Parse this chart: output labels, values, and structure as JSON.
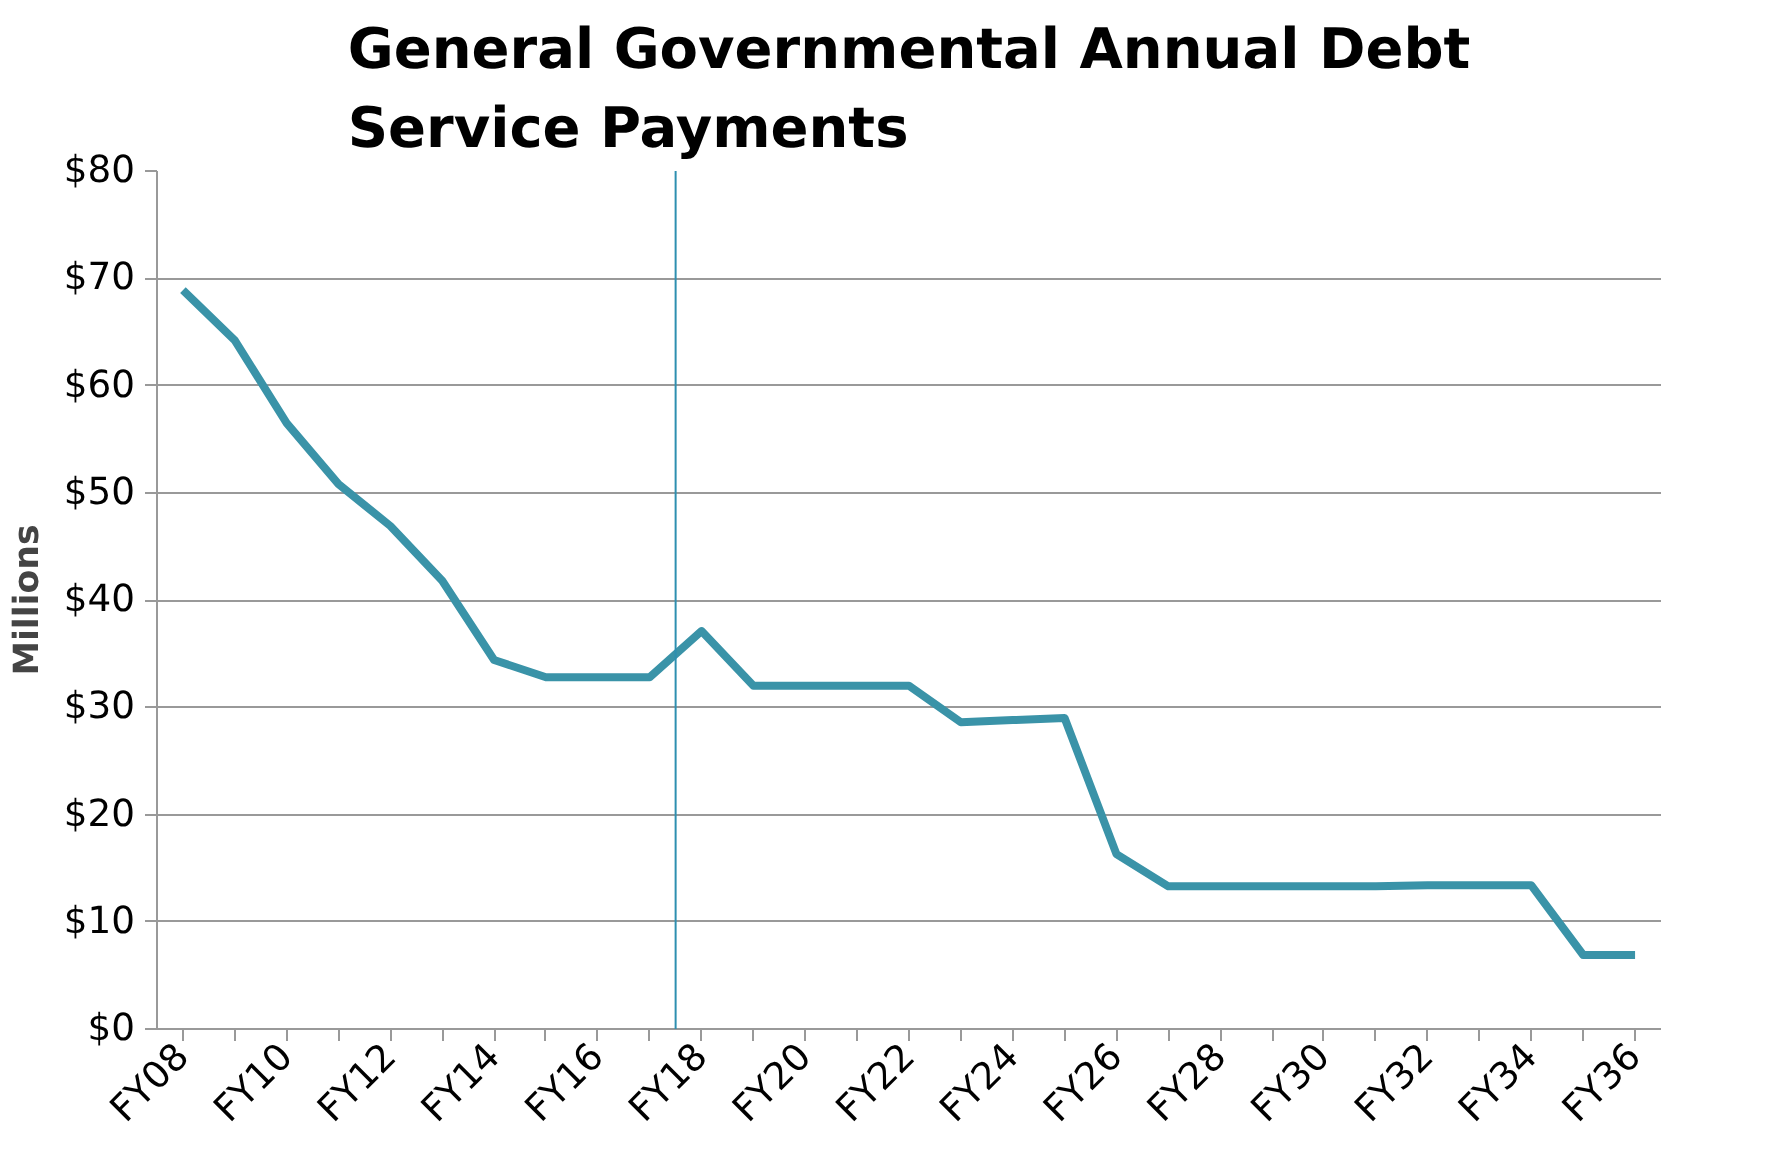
{
  "chart_data": {
    "type": "line",
    "title": "General Governmental Annual Debt\nService Payments",
    "ylabel": "Millions",
    "categories": [
      "FY08",
      null,
      "FY10",
      null,
      "FY12",
      null,
      "FY14",
      null,
      "FY16",
      null,
      "FY18",
      null,
      "FY20",
      null,
      "FY22",
      null,
      "FY24",
      null,
      "FY26",
      null,
      "FY28",
      null,
      "FY30",
      null,
      "FY32",
      null,
      "FY34",
      null,
      "FY36"
    ],
    "series": [
      {
        "color": "#3a93a8",
        "values": [
          68.9,
          64.2,
          56.5,
          50.8,
          46.9,
          41.8,
          34.4,
          32.8,
          32.8,
          32.8,
          37.1,
          32.0,
          32.0,
          32.0,
          32.0,
          28.6,
          28.8,
          29.0,
          16.3,
          13.3,
          13.3,
          13.3,
          13.3,
          13.3,
          13.4,
          13.4,
          13.4,
          6.9,
          6.9
        ]
      }
    ],
    "ylim": [
      0,
      80
    ],
    "yticks": [
      {
        "value": 0,
        "label": "$0"
      },
      {
        "value": 10,
        "label": "$10"
      },
      {
        "value": 20,
        "label": "$20"
      },
      {
        "value": 30,
        "label": "$30"
      },
      {
        "value": 40,
        "label": "$40"
      },
      {
        "value": 50,
        "label": "$50"
      },
      {
        "value": 60,
        "label": "$60"
      },
      {
        "value": 70,
        "label": "$70"
      },
      {
        "value": 80,
        "label": "$80"
      }
    ],
    "ref_lines": [
      {
        "axis": "x",
        "value": "FY18",
        "color": "#2e8fb0"
      }
    ],
    "grid": "y",
    "marker": "none",
    "line_style": "solid"
  }
}
